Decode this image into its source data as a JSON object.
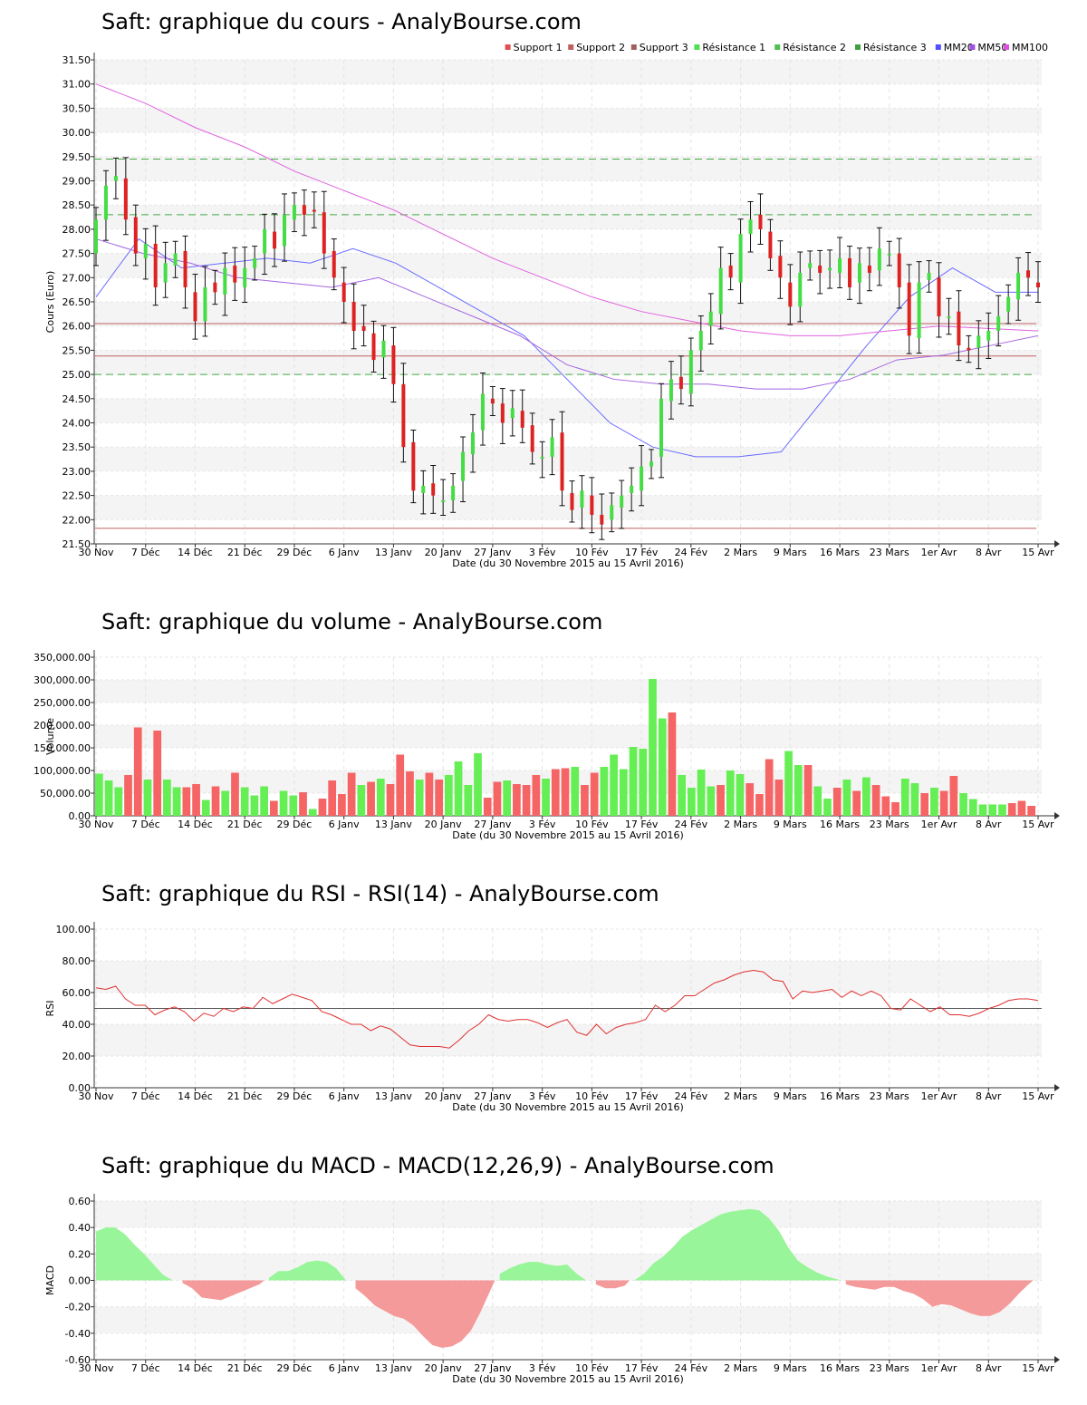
{
  "chart_data": [
    {
      "type": "candlestick",
      "title": "Saft: graphique du cours - AnalyBourse.com",
      "xlabel": "Date (du 30 Novembre 2015 au 15 Avril 2016)",
      "ylabel": "Cours (Euro)",
      "ylim": [
        21.5,
        31.5
      ],
      "yticks": [
        "21.50",
        "22.00",
        "22.50",
        "23.00",
        "23.50",
        "24.00",
        "24.50",
        "25.00",
        "25.50",
        "26.00",
        "26.50",
        "27.00",
        "27.50",
        "28.00",
        "28.50",
        "29.00",
        "29.50",
        "30.00",
        "30.50",
        "31.00",
        "31.50"
      ],
      "xticks": [
        "30 Nov",
        "7 Déc",
        "14 Déc",
        "21 Déc",
        "29 Déc",
        "6 Janv",
        "13 Janv",
        "20 Janv",
        "27 Janv",
        "3 Fév",
        "10 Fév",
        "17 Fév",
        "24 Fév",
        "2 Mars",
        "9 Mars",
        "16 Mars",
        "23 Mars",
        "1er Avr",
        "8 Avr",
        "15 Avr"
      ],
      "legend": [
        {
          "label": "Support 1",
          "color": "#e05050"
        },
        {
          "label": "Support 2",
          "color": "#c06060"
        },
        {
          "label": "Support 3",
          "color": "#a06060"
        },
        {
          "label": "Résistance 1",
          "color": "#50e050"
        },
        {
          "label": "Résistance 2",
          "color": "#50c050"
        },
        {
          "label": "Résistance 3",
          "color": "#40a040"
        },
        {
          "label": "MM20",
          "color": "#5050ff"
        },
        {
          "label": "MM50",
          "color": "#a050e0"
        },
        {
          "label": "MM100",
          "color": "#e050e0"
        }
      ],
      "legend_position": "top-right",
      "levels": {
        "support_1": 26.05,
        "support_2": 25.38,
        "support_3": 21.82,
        "resistance_1": 29.45,
        "resistance_2": 28.3,
        "resistance_3": 25.0
      },
      "candles_close": [
        28.2,
        28.9,
        29.1,
        28.2,
        27.5,
        27.7,
        26.8,
        27.3,
        27.5,
        26.8,
        26.1,
        26.8,
        26.7,
        27.2,
        26.9,
        27.2,
        27.4,
        28.0,
        27.6,
        28.3,
        28.5,
        28.3,
        28.4,
        27.5,
        27.0,
        26.5,
        25.9,
        25.9,
        25.3,
        25.7,
        24.8,
        23.5,
        22.6,
        22.7,
        22.5,
        22.4,
        22.7,
        23.4,
        23.8,
        24.6,
        24.4,
        24.0,
        24.3,
        23.9,
        23.4,
        23.3,
        23.7,
        22.6,
        22.2,
        22.6,
        22.1,
        21.9,
        22.3,
        22.5,
        22.7,
        23.1,
        23.2,
        24.5,
        24.9,
        24.7,
        25.5,
        25.9,
        26.3,
        27.2,
        27.0,
        27.9,
        28.2,
        28.0,
        27.4,
        27.0,
        26.4,
        27.1,
        27.3,
        27.1,
        27.2,
        27.4,
        26.8,
        27.3,
        27.1,
        27.6,
        27.5,
        26.8,
        25.8,
        26.9,
        27.1,
        26.2,
        26.2,
        25.6,
        25.5,
        25.8,
        25.9,
        26.2,
        26.6,
        27.1,
        27.0,
        26.8
      ],
      "series": [
        {
          "name": "MM20",
          "values": [
            26.6,
            27.8,
            27.2,
            27.3,
            27.4,
            27.3,
            27.6,
            27.3,
            26.8,
            26.3,
            25.8,
            24.9,
            24.0,
            23.5,
            23.3,
            23.3,
            23.4,
            24.5,
            25.6,
            26.6,
            27.2,
            26.7,
            26.7
          ]
        },
        {
          "name": "MM50",
          "values": [
            27.8,
            27.5,
            27.3,
            27.0,
            26.9,
            26.8,
            27.0,
            26.6,
            26.2,
            25.8,
            25.2,
            24.9,
            24.8,
            24.8,
            24.7,
            24.7,
            24.9,
            25.3,
            25.4,
            25.6,
            25.8
          ]
        },
        {
          "name": "MM100",
          "values": [
            31.0,
            30.6,
            30.1,
            29.7,
            29.2,
            28.8,
            28.4,
            27.9,
            27.4,
            27.0,
            26.6,
            26.3,
            26.1,
            25.9,
            25.8,
            25.8,
            25.9,
            26.0,
            25.95,
            25.9
          ]
        }
      ]
    },
    {
      "type": "bar",
      "title": "Saft: graphique du volume - AnalyBourse.com",
      "xlabel": "Date (du 30 Novembre 2015 au 15 Avril 2016)",
      "ylabel": "Volume",
      "ylim": [
        0,
        350000
      ],
      "yticks": [
        "0.00",
        "50,000.00",
        "100,000.00",
        "150,000.00",
        "200,000.00",
        "250,000.00",
        "300,000.00",
        "350,000.00"
      ],
      "xticks": [
        "30 Nov",
        "7 Déc",
        "14 Déc",
        "21 Déc",
        "29 Déc",
        "6 Janv",
        "13 Janv",
        "20 Janv",
        "27 Janv",
        "3 Fév",
        "10 Fév",
        "17 Fév",
        "24 Fév",
        "2 Mars",
        "9 Mars",
        "16 Mars",
        "23 Mars",
        "1er Avr",
        "8 Avr",
        "15 Avr"
      ],
      "values": [
        93000,
        78000,
        63000,
        90000,
        195000,
        80000,
        188000,
        80000,
        63000,
        63000,
        70000,
        35000,
        65000,
        55000,
        95000,
        63000,
        45000,
        65000,
        33000,
        55000,
        45000,
        52000,
        15000,
        38000,
        78000,
        48000,
        95000,
        68000,
        75000,
        82000,
        70000,
        135000,
        98000,
        80000,
        95000,
        80000,
        90000,
        120000,
        68000,
        138000,
        40000,
        75000,
        78000,
        70000,
        68000,
        90000,
        82000,
        103000,
        105000,
        108000,
        68000,
        95000,
        108000,
        135000,
        103000,
        152000,
        148000,
        302000,
        215000,
        228000,
        90000,
        62000,
        102000,
        65000,
        68000,
        100000,
        92000,
        72000,
        48000,
        125000,
        80000,
        143000,
        112000,
        112000,
        65000,
        38000,
        62000,
        80000,
        55000,
        85000,
        68000,
        43000,
        30000,
        82000,
        72000,
        50000,
        62000,
        55000,
        88000,
        50000,
        37000,
        25000,
        25000,
        25000,
        28000,
        33000,
        22000
      ],
      "colors_up": "#66ee55",
      "colors_down": "#f56565"
    },
    {
      "type": "line",
      "title": "Saft: graphique du RSI - RSI(14) - AnalyBourse.com",
      "xlabel": "Date (du 30 Novembre 2015 au 15 Avril 2016)",
      "ylabel": "RSI",
      "ylim": [
        0,
        100
      ],
      "yticks": [
        "0.00",
        "20.00",
        "40.00",
        "60.00",
        "80.00",
        "100.00"
      ],
      "xticks": [
        "30 Nov",
        "7 Déc",
        "14 Déc",
        "21 Déc",
        "29 Déc",
        "6 Janv",
        "13 Janv",
        "20 Janv",
        "27 Janv",
        "3 Fév",
        "10 Fév",
        "17 Fév",
        "24 Fév",
        "2 Mars",
        "9 Mars",
        "16 Mars",
        "23 Mars",
        "1er Avr",
        "8 Avr",
        "15 Avr"
      ],
      "reference_line": 50,
      "series": [
        {
          "values": [
            63,
            62,
            64,
            56,
            52,
            52,
            46,
            49,
            51,
            48,
            42,
            47,
            45,
            50,
            48,
            51,
            50,
            57,
            53,
            56,
            59,
            57,
            55,
            48,
            46,
            43,
            40,
            40,
            36,
            39,
            37,
            32,
            27,
            26,
            26,
            26,
            25,
            30,
            36,
            40,
            46,
            43,
            42,
            43,
            43,
            41,
            38,
            41,
            43,
            35,
            33,
            40,
            34,
            38,
            40,
            41,
            43,
            52,
            48,
            52,
            58,
            58,
            62,
            66,
            68,
            71,
            73,
            74,
            73,
            68,
            67,
            56,
            61,
            60,
            61,
            62,
            57,
            61,
            58,
            61,
            58,
            50,
            49,
            56,
            52,
            48,
            51,
            46,
            46,
            45,
            47,
            50,
            52,
            55,
            56,
            56,
            55
          ]
        }
      ]
    },
    {
      "type": "area",
      "title": "Saft: graphique du MACD - MACD(12,26,9) - AnalyBourse.com",
      "xlabel": "Date (du 30 Novembre 2015 au 15 Avril 2016)",
      "ylabel": "MACD",
      "ylim": [
        -0.6,
        0.6
      ],
      "yticks": [
        "-0.60",
        "-0.40",
        "-0.20",
        "0.00",
        "0.20",
        "0.40",
        "0.60"
      ],
      "xticks": [
        "30 Nov",
        "7 Déc",
        "14 Déc",
        "21 Déc",
        "29 Déc",
        "6 Janv",
        "13 Janv",
        "20 Janv",
        "27 Janv",
        "3 Fév",
        "10 Fév",
        "17 Fév",
        "24 Fév",
        "2 Mars",
        "9 Mars",
        "16 Mars",
        "23 Mars",
        "1er Avr",
        "8 Avr",
        "15 Avr"
      ],
      "series": [
        {
          "values": [
            0.37,
            0.4,
            0.4,
            0.35,
            0.27,
            0.2,
            0.12,
            0.04,
            0.0,
            -0.02,
            -0.06,
            -0.13,
            -0.14,
            -0.15,
            -0.12,
            -0.09,
            -0.06,
            -0.03,
            0.02,
            0.07,
            0.07,
            0.1,
            0.14,
            0.15,
            0.14,
            0.09,
            0.0,
            -0.06,
            -0.12,
            -0.19,
            -0.23,
            -0.27,
            -0.29,
            -0.34,
            -0.42,
            -0.49,
            -0.51,
            -0.5,
            -0.46,
            -0.38,
            -0.24,
            -0.08,
            0.05,
            0.09,
            0.12,
            0.14,
            0.14,
            0.12,
            0.11,
            0.12,
            0.05,
            0.0,
            -0.03,
            -0.06,
            -0.06,
            -0.04,
            0.0,
            0.05,
            0.13,
            0.18,
            0.25,
            0.33,
            0.38,
            0.42,
            0.46,
            0.5,
            0.52,
            0.53,
            0.54,
            0.53,
            0.47,
            0.38,
            0.25,
            0.15,
            0.1,
            0.06,
            0.03,
            0.01,
            -0.03,
            -0.05,
            -0.06,
            -0.07,
            -0.05,
            -0.05,
            -0.08,
            -0.1,
            -0.14,
            -0.2,
            -0.18,
            -0.19,
            -0.22,
            -0.25,
            -0.27,
            -0.27,
            -0.24,
            -0.18,
            -0.1,
            -0.03,
            0.01
          ]
        }
      ]
    }
  ]
}
